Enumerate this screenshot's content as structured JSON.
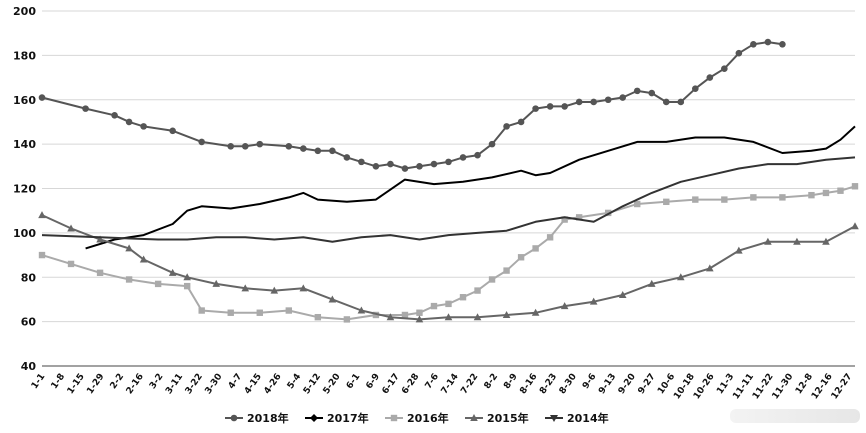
{
  "chart_data": {
    "type": "line",
    "title": "",
    "xlabel": "",
    "ylabel": "",
    "ylim": [
      40,
      200
    ],
    "yticks": [
      40,
      60,
      80,
      100,
      120,
      140,
      160,
      180,
      200
    ],
    "grid": true,
    "legend_position": "bottom",
    "x_labels": [
      "1-1",
      "1-8",
      "1-15",
      "1-29",
      "2-2",
      "2-16",
      "3-2",
      "3-11",
      "3-22",
      "3-30",
      "4-7",
      "4-15",
      "4-26",
      "5-4",
      "5-12",
      "5-20",
      "6-1",
      "6-9",
      "6-17",
      "6-28",
      "7-6",
      "7-14",
      "7-22",
      "8-2",
      "8-9",
      "8-16",
      "8-23",
      "8-30",
      "9-6",
      "9-13",
      "9-20",
      "9-27",
      "10-6",
      "10-18",
      "10-26",
      "11-3",
      "11-11",
      "11-22",
      "11-30",
      "12-8",
      "12-16",
      "12-27"
    ],
    "x_count": 57,
    "series": [
      {
        "name": "2018年",
        "color": "#555555",
        "marker": "circle",
        "x": [
          1,
          4,
          6,
          7,
          8,
          10,
          12,
          14,
          15,
          16,
          18,
          19,
          20,
          21,
          22,
          23,
          24,
          25,
          26,
          27,
          28,
          29,
          30,
          31,
          32,
          33,
          34,
          35,
          36,
          37,
          38,
          39,
          40,
          41,
          42,
          43,
          44,
          45,
          46,
          47,
          48,
          49,
          50,
          51,
          52
        ],
        "values": [
          161,
          156,
          153,
          150,
          148,
          146,
          141,
          139,
          139,
          140,
          139,
          138,
          137,
          137,
          134,
          132,
          130,
          131,
          129,
          130,
          131,
          132,
          134,
          135,
          140,
          148,
          150,
          156,
          157,
          157,
          159,
          159,
          160,
          161,
          164,
          163,
          159,
          159,
          165,
          170,
          174,
          181,
          185,
          186,
          185
        ]
      },
      {
        "name": "2017年",
        "color": "#000000",
        "marker": "none",
        "x": [
          4,
          6,
          8,
          10,
          11,
          12,
          14,
          16,
          18,
          19,
          20,
          22,
          24,
          26,
          28,
          30,
          32,
          34,
          35,
          36,
          38,
          40,
          42,
          44,
          46,
          48,
          50,
          52,
          54,
          55,
          56,
          57
        ],
        "values": [
          93,
          97,
          99,
          104,
          110,
          112,
          111,
          113,
          116,
          118,
          115,
          114,
          115,
          124,
          122,
          123,
          125,
          128,
          126,
          127,
          133,
          137,
          141,
          141,
          143,
          143,
          141,
          136,
          137,
          138,
          142,
          148
        ]
      },
      {
        "name": "2016年",
        "color": "#aaaaaa",
        "marker": "square",
        "x": [
          1,
          3,
          5,
          7,
          9,
          11,
          12,
          14,
          16,
          18,
          20,
          22,
          24,
          26,
          27,
          28,
          29,
          30,
          31,
          32,
          33,
          34,
          35,
          36,
          37,
          38,
          40,
          42,
          44,
          46,
          48,
          50,
          52,
          54,
          55,
          56,
          57
        ],
        "values": [
          90,
          86,
          82,
          79,
          77,
          76,
          65,
          64,
          64,
          65,
          62,
          61,
          63,
          63,
          64,
          67,
          68,
          71,
          74,
          79,
          83,
          89,
          93,
          98,
          106,
          107,
          109,
          113,
          114,
          115,
          115,
          116,
          116,
          117,
          118,
          119,
          121
        ]
      },
      {
        "name": "2015年",
        "color": "#666666",
        "marker": "triangle",
        "x": [
          1,
          3,
          5,
          7,
          8,
          10,
          11,
          13,
          15,
          17,
          19,
          21,
          23,
          25,
          27,
          29,
          31,
          33,
          35,
          37,
          39,
          41,
          43,
          45,
          47,
          49,
          51,
          53,
          55,
          57
        ],
        "values": [
          108,
          102,
          97,
          93,
          88,
          82,
          80,
          77,
          75,
          74,
          75,
          70,
          65,
          62,
          61,
          62,
          62,
          63,
          64,
          67,
          69,
          72,
          77,
          80,
          84,
          92,
          96,
          96,
          96,
          103
        ]
      },
      {
        "name": "2014年",
        "color": "#333333",
        "marker": "none",
        "x": [
          1,
          5,
          9,
          11,
          13,
          15,
          17,
          19,
          21,
          23,
          25,
          27,
          29,
          31,
          33,
          35,
          37,
          39,
          41,
          43,
          45,
          47,
          49,
          51,
          53,
          55,
          57
        ],
        "values": [
          99,
          98,
          97,
          97,
          98,
          98,
          97,
          98,
          96,
          98,
          99,
          97,
          99,
          100,
          101,
          105,
          107,
          105,
          112,
          118,
          123,
          126,
          129,
          131,
          131,
          133,
          134
        ]
      }
    ]
  }
}
